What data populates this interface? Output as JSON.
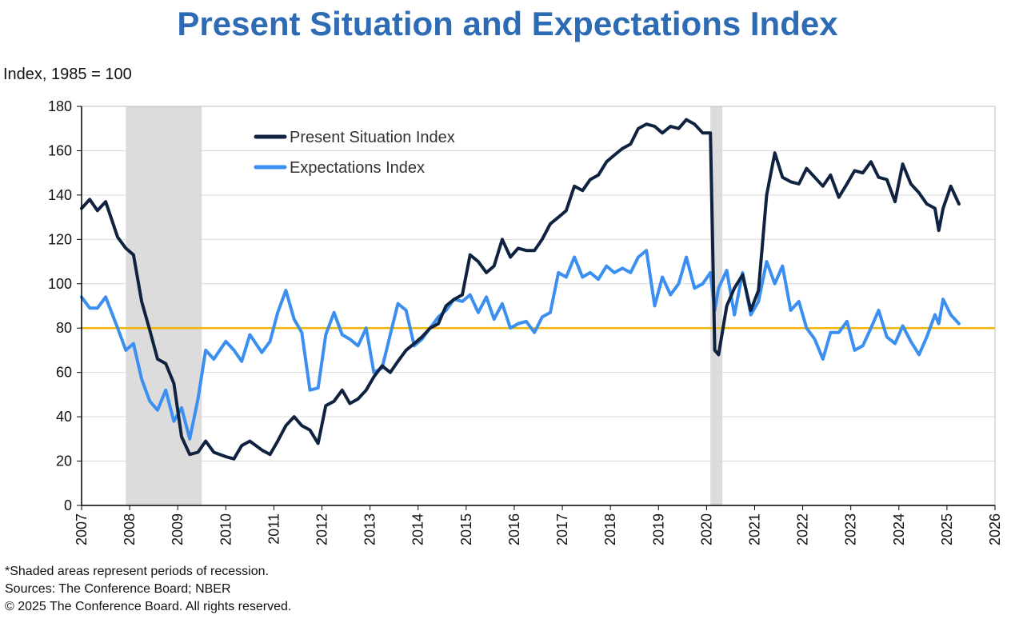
{
  "chart_data": {
    "type": "line",
    "title": "Present Situation and Expectations Index",
    "ylabel": "Index, 1985 = 100",
    "xlim": [
      2007,
      2026
    ],
    "ylim": [
      0,
      180
    ],
    "yticks": [
      0,
      20,
      40,
      60,
      80,
      100,
      120,
      140,
      160,
      180
    ],
    "xticks": [
      "2007",
      "2008",
      "2009",
      "2010",
      "2011",
      "2012",
      "2013",
      "2014",
      "2015",
      "2016",
      "2017",
      "2018",
      "2019",
      "2020",
      "2021",
      "2022",
      "2023",
      "2024",
      "2025",
      "2026"
    ],
    "grid": "horizontal",
    "legend_position": "top-left",
    "reference_line": {
      "y": 80,
      "color": "#f4b400"
    },
    "recessions": [
      [
        2007.92,
        2009.5
      ],
      [
        2020.08,
        2020.33
      ]
    ],
    "series": [
      {
        "name": "Present Situation Index",
        "color": "#0f2240",
        "points": [
          [
            2007.0,
            134
          ],
          [
            2007.17,
            138
          ],
          [
            2007.33,
            133
          ],
          [
            2007.5,
            137
          ],
          [
            2007.75,
            121
          ],
          [
            2007.92,
            116
          ],
          [
            2008.08,
            113
          ],
          [
            2008.25,
            92
          ],
          [
            2008.42,
            79
          ],
          [
            2008.58,
            66
          ],
          [
            2008.75,
            64
          ],
          [
            2008.92,
            55
          ],
          [
            2009.08,
            31
          ],
          [
            2009.25,
            23
          ],
          [
            2009.42,
            24
          ],
          [
            2009.58,
            29
          ],
          [
            2009.75,
            24
          ],
          [
            2010.0,
            22
          ],
          [
            2010.17,
            21
          ],
          [
            2010.33,
            27
          ],
          [
            2010.5,
            29
          ],
          [
            2010.75,
            25
          ],
          [
            2010.92,
            23
          ],
          [
            2011.08,
            29
          ],
          [
            2011.25,
            36
          ],
          [
            2011.42,
            40
          ],
          [
            2011.58,
            36
          ],
          [
            2011.75,
            34
          ],
          [
            2011.92,
            28
          ],
          [
            2012.08,
            45
          ],
          [
            2012.25,
            47
          ],
          [
            2012.42,
            52
          ],
          [
            2012.58,
            46
          ],
          [
            2012.75,
            48
          ],
          [
            2012.92,
            52
          ],
          [
            2013.08,
            58
          ],
          [
            2013.25,
            63
          ],
          [
            2013.42,
            60
          ],
          [
            2013.58,
            65
          ],
          [
            2013.75,
            70
          ],
          [
            2013.92,
            73
          ],
          [
            2014.08,
            76
          ],
          [
            2014.25,
            80
          ],
          [
            2014.42,
            82
          ],
          [
            2014.58,
            90
          ],
          [
            2014.75,
            93
          ],
          [
            2014.92,
            95
          ],
          [
            2015.08,
            113
          ],
          [
            2015.25,
            110
          ],
          [
            2015.42,
            105
          ],
          [
            2015.58,
            108
          ],
          [
            2015.75,
            120
          ],
          [
            2015.92,
            112
          ],
          [
            2016.08,
            116
          ],
          [
            2016.25,
            115
          ],
          [
            2016.42,
            115
          ],
          [
            2016.58,
            120
          ],
          [
            2016.75,
            127
          ],
          [
            2016.92,
            130
          ],
          [
            2017.08,
            133
          ],
          [
            2017.25,
            144
          ],
          [
            2017.42,
            142
          ],
          [
            2017.58,
            147
          ],
          [
            2017.75,
            149
          ],
          [
            2017.92,
            155
          ],
          [
            2018.08,
            158
          ],
          [
            2018.25,
            161
          ],
          [
            2018.42,
            163
          ],
          [
            2018.58,
            170
          ],
          [
            2018.75,
            172
          ],
          [
            2018.92,
            171
          ],
          [
            2019.08,
            168
          ],
          [
            2019.25,
            171
          ],
          [
            2019.42,
            170
          ],
          [
            2019.58,
            174
          ],
          [
            2019.75,
            172
          ],
          [
            2019.92,
            168
          ],
          [
            2020.08,
            168
          ],
          [
            2020.17,
            70
          ],
          [
            2020.25,
            68
          ],
          [
            2020.42,
            90
          ],
          [
            2020.58,
            98
          ],
          [
            2020.75,
            104
          ],
          [
            2020.92,
            88
          ],
          [
            2021.08,
            97
          ],
          [
            2021.25,
            140
          ],
          [
            2021.42,
            159
          ],
          [
            2021.58,
            148
          ],
          [
            2021.75,
            146
          ],
          [
            2021.92,
            145
          ],
          [
            2022.08,
            152
          ],
          [
            2022.25,
            148
          ],
          [
            2022.42,
            144
          ],
          [
            2022.58,
            149
          ],
          [
            2022.75,
            139
          ],
          [
            2022.92,
            145
          ],
          [
            2023.08,
            151
          ],
          [
            2023.25,
            150
          ],
          [
            2023.42,
            155
          ],
          [
            2023.58,
            148
          ],
          [
            2023.75,
            147
          ],
          [
            2023.92,
            137
          ],
          [
            2024.08,
            154
          ],
          [
            2024.25,
            145
          ],
          [
            2024.42,
            141
          ],
          [
            2024.58,
            136
          ],
          [
            2024.75,
            134
          ],
          [
            2024.83,
            124
          ],
          [
            2024.92,
            134
          ],
          [
            2025.08,
            144
          ],
          [
            2025.25,
            136
          ]
        ]
      },
      {
        "name": "Expectations Index",
        "color": "#3b8ff0",
        "points": [
          [
            2007.0,
            94
          ],
          [
            2007.17,
            89
          ],
          [
            2007.33,
            89
          ],
          [
            2007.5,
            94
          ],
          [
            2007.75,
            80
          ],
          [
            2007.92,
            70
          ],
          [
            2008.08,
            73
          ],
          [
            2008.25,
            57
          ],
          [
            2008.42,
            47
          ],
          [
            2008.58,
            43
          ],
          [
            2008.75,
            52
          ],
          [
            2008.92,
            38
          ],
          [
            2009.08,
            44
          ],
          [
            2009.25,
            30
          ],
          [
            2009.42,
            48
          ],
          [
            2009.58,
            70
          ],
          [
            2009.75,
            66
          ],
          [
            2010.0,
            74
          ],
          [
            2010.17,
            70
          ],
          [
            2010.33,
            65
          ],
          [
            2010.5,
            77
          ],
          [
            2010.75,
            69
          ],
          [
            2010.92,
            74
          ],
          [
            2011.08,
            87
          ],
          [
            2011.25,
            97
          ],
          [
            2011.42,
            84
          ],
          [
            2011.58,
            78
          ],
          [
            2011.75,
            52
          ],
          [
            2011.92,
            53
          ],
          [
            2012.08,
            77
          ],
          [
            2012.25,
            87
          ],
          [
            2012.42,
            77
          ],
          [
            2012.58,
            75
          ],
          [
            2012.75,
            72
          ],
          [
            2012.92,
            80
          ],
          [
            2013.08,
            60
          ],
          [
            2013.25,
            62
          ],
          [
            2013.42,
            77
          ],
          [
            2013.58,
            91
          ],
          [
            2013.75,
            88
          ],
          [
            2013.92,
            72
          ],
          [
            2014.08,
            75
          ],
          [
            2014.25,
            80
          ],
          [
            2014.42,
            85
          ],
          [
            2014.58,
            88
          ],
          [
            2014.75,
            93
          ],
          [
            2014.92,
            92
          ],
          [
            2015.08,
            95
          ],
          [
            2015.25,
            87
          ],
          [
            2015.42,
            94
          ],
          [
            2015.58,
            84
          ],
          [
            2015.75,
            91
          ],
          [
            2015.92,
            80
          ],
          [
            2016.08,
            82
          ],
          [
            2016.25,
            83
          ],
          [
            2016.42,
            78
          ],
          [
            2016.58,
            85
          ],
          [
            2016.75,
            87
          ],
          [
            2016.92,
            105
          ],
          [
            2017.08,
            103
          ],
          [
            2017.25,
            112
          ],
          [
            2017.42,
            103
          ],
          [
            2017.58,
            105
          ],
          [
            2017.75,
            102
          ],
          [
            2017.92,
            108
          ],
          [
            2018.08,
            105
          ],
          [
            2018.25,
            107
          ],
          [
            2018.42,
            105
          ],
          [
            2018.58,
            112
          ],
          [
            2018.75,
            115
          ],
          [
            2018.92,
            90
          ],
          [
            2019.08,
            103
          ],
          [
            2019.25,
            95
          ],
          [
            2019.42,
            100
          ],
          [
            2019.58,
            112
          ],
          [
            2019.75,
            98
          ],
          [
            2019.92,
            100
          ],
          [
            2020.08,
            105
          ],
          [
            2020.17,
            88
          ],
          [
            2020.25,
            98
          ],
          [
            2020.42,
            106
          ],
          [
            2020.58,
            86
          ],
          [
            2020.75,
            105
          ],
          [
            2020.92,
            86
          ],
          [
            2021.08,
            92
          ],
          [
            2021.25,
            110
          ],
          [
            2021.42,
            100
          ],
          [
            2021.58,
            108
          ],
          [
            2021.75,
            88
          ],
          [
            2021.92,
            92
          ],
          [
            2022.08,
            80
          ],
          [
            2022.25,
            75
          ],
          [
            2022.42,
            66
          ],
          [
            2022.58,
            78
          ],
          [
            2022.75,
            78
          ],
          [
            2022.92,
            83
          ],
          [
            2023.08,
            70
          ],
          [
            2023.25,
            72
          ],
          [
            2023.42,
            80
          ],
          [
            2023.58,
            88
          ],
          [
            2023.75,
            76
          ],
          [
            2023.92,
            73
          ],
          [
            2024.08,
            81
          ],
          [
            2024.25,
            74
          ],
          [
            2024.42,
            68
          ],
          [
            2024.58,
            76
          ],
          [
            2024.75,
            86
          ],
          [
            2024.83,
            82
          ],
          [
            2024.92,
            93
          ],
          [
            2025.08,
            86
          ],
          [
            2025.25,
            82
          ]
        ]
      }
    ]
  },
  "footnotes": {
    "recession_note": "*Shaded areas represent periods of recession.",
    "sources": "Sources: The Conference Board;  NBER",
    "copyright": "© 2025 The Conference Board. All rights reserved."
  }
}
